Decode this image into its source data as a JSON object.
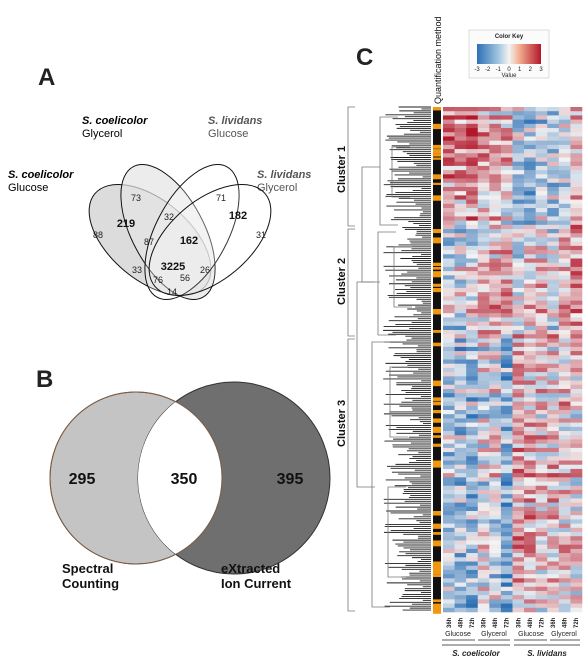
{
  "panel_a": {
    "letter": "A",
    "sets": [
      {
        "name": "S. coelicolor",
        "condition": "Glycerol",
        "name_color": "#111111"
      },
      {
        "name": "S. lividans",
        "condition": "Glucose",
        "name_color": "#555555"
      },
      {
        "name": "S. coelicolor",
        "condition": "Glucose",
        "name_color": "#111111"
      },
      {
        "name": "S. lividans",
        "condition": "Glycerol",
        "name_color": "#555555"
      }
    ],
    "regions": [
      "73",
      "71",
      "219",
      "32",
      "182",
      "88",
      "87",
      "162",
      "31",
      "3225",
      "33",
      "26",
      "76",
      "56",
      "14"
    ]
  },
  "panel_b": {
    "letter": "B",
    "left_only": "295",
    "overlap": "350",
    "right_only": "395",
    "left_label_line1": "Spectral",
    "left_label_line2": "Counting",
    "right_label_line1": "eXtracted",
    "right_label_line2": "Ion Current",
    "colors": {
      "left": "#c4c4c4",
      "right": "#6f6f6f",
      "overlap": "#ffffff"
    }
  },
  "panel_c": {
    "letter": "C",
    "quantification_label": "Quantification method",
    "color_key": {
      "title": "Color Key",
      "value_label": "Value",
      "ticks": [
        "-3",
        "-2",
        "-1",
        "0",
        "1",
        "2",
        "3"
      ],
      "low_color": "#2c6fb4",
      "mid_color": "#f3f3f3",
      "high_color": "#b2182b"
    },
    "clusters": [
      "Cluster 1",
      "Cluster 2",
      "Cluster 3"
    ],
    "column_labels": [
      "36h",
      "48h",
      "72h",
      "36h",
      "48h",
      "72h",
      "36h",
      "48h",
      "72h",
      "36h",
      "48h",
      "72h"
    ],
    "conditions": [
      "Glucose",
      "Glycerol",
      "Glucose",
      "Glycerol"
    ],
    "organisms": [
      "S. coelicolor",
      "S. lividans"
    ],
    "method_colors": {
      "a": "#f2960e",
      "b": "#111111"
    }
  }
}
